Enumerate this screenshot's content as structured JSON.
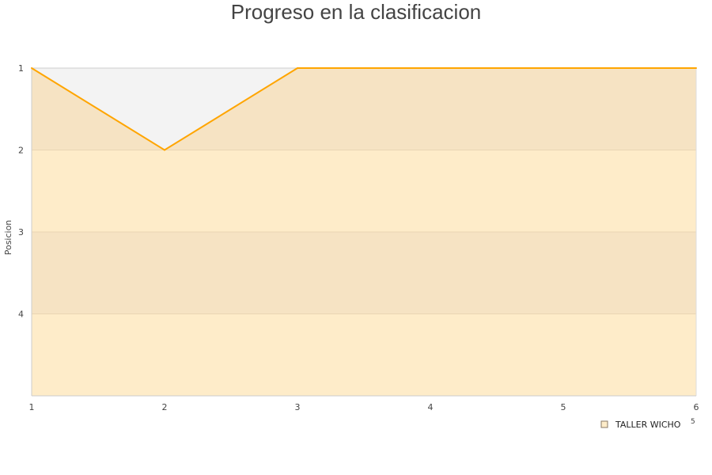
{
  "chart_data": {
    "type": "area",
    "title": "Progreso en la clasificacion",
    "xlabel": "",
    "ylabel": "Posicion",
    "x": [
      1,
      2,
      3,
      4,
      5,
      6
    ],
    "xlim": [
      1,
      6
    ],
    "ylim": [
      1,
      5
    ],
    "y_inverted": true,
    "y_ticks": [
      1,
      2,
      3,
      4
    ],
    "series": [
      {
        "name": "TALLER WICHO",
        "values": [
          1,
          2,
          1,
          1,
          1,
          1
        ],
        "color": "#ffa500",
        "fill": "#f6e3c3"
      }
    ],
    "band_colors": [
      "#f6e3c3",
      "#feecc9"
    ],
    "plot_background": "#f3f3f3",
    "legend": "bottom-right",
    "annotation": "5"
  }
}
